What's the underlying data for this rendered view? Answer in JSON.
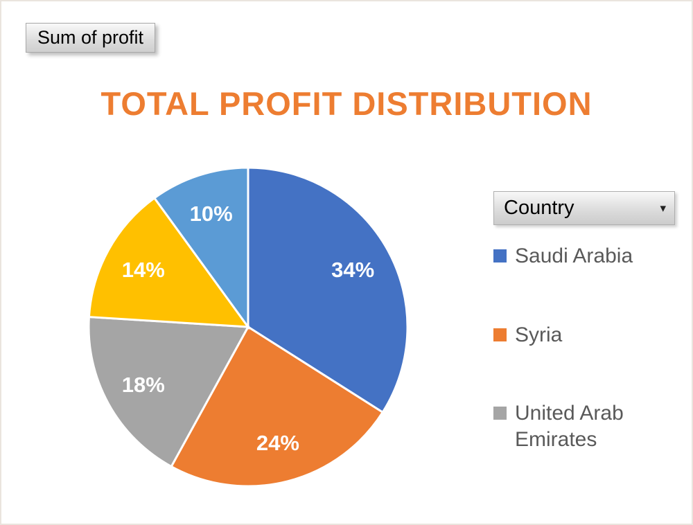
{
  "buttons": {
    "field_button": "Sum of profit",
    "legend_button": "Country",
    "dropdown_glyph": "▾"
  },
  "chart_data": {
    "type": "pie",
    "title": "TOTAL PROFIT DISTRIBUTION",
    "title_color": "#ED7D31",
    "start_angle_deg": 0,
    "direction": "clockwise",
    "data_label_color": "#FFFFFF",
    "slices": [
      {
        "label": "Saudi Arabia",
        "percent": 34,
        "data_label": "34%",
        "color": "#4472C4"
      },
      {
        "label": "Syria",
        "percent": 24,
        "data_label": "24%",
        "color": "#ED7D31"
      },
      {
        "label": "United Arab Emirates",
        "percent": 18,
        "data_label": "18%",
        "color": "#A5A5A5"
      },
      {
        "label": "",
        "percent": 14,
        "data_label": "14%",
        "color": "#FFC000"
      },
      {
        "label": "",
        "percent": 10,
        "data_label": "10%",
        "color": "#5B9BD5"
      }
    ],
    "legend_position": "right",
    "legend_title": "Country",
    "legend_entries": [
      {
        "label": "Saudi Arabia",
        "color": "#4472C4"
      },
      {
        "label": "Syria",
        "color": "#ED7D31"
      },
      {
        "label": "United Arab Emirates",
        "color": "#A5A5A5"
      }
    ]
  }
}
